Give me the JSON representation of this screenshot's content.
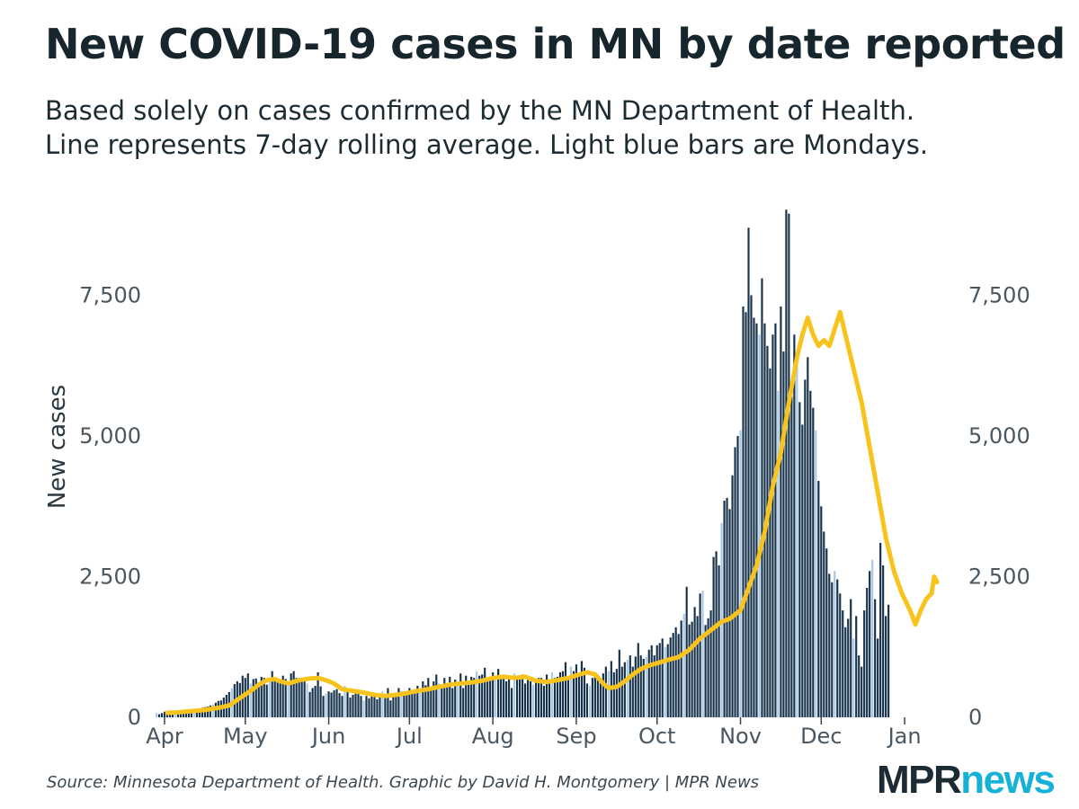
{
  "header": {
    "title": "New COVID-19 cases in MN by date reported",
    "subtitle_line1": "Based solely on cases confirmed by the MN Department of Health.",
    "subtitle_line2": "Line represents 7-day rolling average. Light blue bars are Mondays."
  },
  "footer": {
    "source": "Source: Minnesota Department of Health. Graphic by David H. Montgomery | MPR News",
    "logo_mpr": "MPR",
    "logo_news": "news"
  },
  "colors": {
    "bar": "#16314a",
    "monday_bar": "#a9c8e6",
    "line": "#f7c31c",
    "tick_text": "#4a5660"
  },
  "chart_data": {
    "type": "bar",
    "title": "New COVID-19 cases in MN by date reported",
    "ylabel": "New cases",
    "xlabel": "",
    "ylim": [
      0,
      9200
    ],
    "yticks": [
      0,
      2500,
      5000,
      7500
    ],
    "ytick_labels": [
      "0",
      "2,500",
      "5,000",
      "7,500"
    ],
    "x_start_day": 0,
    "x_end_day": 288,
    "xticks": [
      {
        "label": "Apr",
        "day": 0
      },
      {
        "label": "May",
        "day": 30
      },
      {
        "label": "Jun",
        "day": 61
      },
      {
        "label": "Jul",
        "day": 91
      },
      {
        "label": "Aug",
        "day": 122
      },
      {
        "label": "Sep",
        "day": 153
      },
      {
        "label": "Oct",
        "day": 183
      },
      {
        "label": "Nov",
        "day": 214
      },
      {
        "label": "Dec",
        "day": 244
      },
      {
        "label": "Jan",
        "day": 275
      }
    ],
    "series": [
      {
        "name": "Daily new cases",
        "kind": "bars",
        "first_day": -3,
        "first_weekday": 0,
        "monday_highlight": true,
        "values": [
          75,
          55,
          75,
          100,
          60,
          80,
          70,
          60,
          100,
          100,
          110,
          110,
          120,
          110,
          130,
          140,
          160,
          170,
          180,
          190,
          210,
          230,
          260,
          290,
          300,
          350,
          400,
          450,
          520,
          590,
          640,
          610,
          740,
          700,
          780,
          600,
          680,
          690,
          620,
          720,
          700,
          580,
          650,
          820,
          700,
          620,
          660,
          740,
          680,
          640,
          780,
          820,
          700,
          650,
          660,
          700,
          600,
          450,
          520,
          560,
          800,
          550,
          380,
          420,
          460,
          440,
          480,
          500,
          430,
          380,
          560,
          480,
          350,
          400,
          420,
          440,
          380,
          300,
          380,
          340,
          420,
          360,
          320,
          390,
          460,
          400,
          520,
          300,
          420,
          440,
          520,
          470,
          450,
          460,
          520,
          480,
          420,
          560,
          500,
          640,
          570,
          700,
          540,
          640,
          760,
          600,
          560,
          700,
          580,
          720,
          520,
          670,
          620,
          780,
          520,
          740,
          640,
          720,
          700,
          820,
          740,
          760,
          880,
          640,
          700,
          800,
          740,
          860,
          700,
          760,
          640,
          720,
          520,
          780,
          680,
          740,
          760,
          600,
          680,
          640,
          580,
          620,
          700,
          700,
          560,
          760,
          660,
          800,
          700,
          720,
          800,
          820,
          980,
          720,
          900,
          820,
          940,
          780,
          1000,
          880,
          600,
          560,
          700,
          800,
          740,
          640,
          780,
          900,
          820,
          1000,
          800,
          860,
          1200,
          900,
          980,
          1020,
          1100,
          900,
          1080,
          1320,
          1100,
          1040,
          1080,
          1200,
          1280,
          1100,
          1280,
          1320,
          1400,
          1250,
          1300,
          1420,
          1500,
          1600,
          1480,
          1720,
          1840,
          2320,
          1650,
          1700,
          1960,
          1800,
          2200,
          2250,
          1640,
          1760,
          1900,
          2850,
          2950,
          2700,
          3450,
          3850,
          3900,
          3700,
          4300,
          4800,
          5000,
          5100,
          7300,
          7200,
          8700,
          7500,
          7100,
          7000,
          6800,
          7800,
          7000,
          6600,
          6200,
          6800,
          7000,
          5800,
          7300,
          6500,
          9020,
          8950,
          5700,
          6800,
          6400,
          5600,
          5200,
          6000,
          6400,
          5800,
          5500,
          5100,
          4200,
          3750,
          3300,
          3000,
          2550,
          2400,
          2600,
          2450,
          2200,
          1900,
          1600,
          1750,
          2100,
          1400,
          1800,
          1100,
          900,
          1900,
          2300,
          2600,
          2800,
          2100,
          1400,
          3100,
          2700,
          1800,
          2000
        ]
      },
      {
        "name": "7-day rolling average",
        "kind": "line",
        "points": [
          [
            1,
            80
          ],
          [
            5,
            90
          ],
          [
            10,
            110
          ],
          [
            15,
            130
          ],
          [
            20,
            170
          ],
          [
            24,
            210
          ],
          [
            28,
            340
          ],
          [
            32,
            470
          ],
          [
            35,
            580
          ],
          [
            38,
            660
          ],
          [
            41,
            680
          ],
          [
            43,
            640
          ],
          [
            46,
            600
          ],
          [
            50,
            660
          ],
          [
            54,
            690
          ],
          [
            57,
            700
          ],
          [
            60,
            660
          ],
          [
            63,
            600
          ],
          [
            66,
            500
          ],
          [
            70,
            470
          ],
          [
            74,
            440
          ],
          [
            78,
            400
          ],
          [
            82,
            380
          ],
          [
            86,
            400
          ],
          [
            90,
            430
          ],
          [
            94,
            470
          ],
          [
            98,
            500
          ],
          [
            102,
            540
          ],
          [
            106,
            580
          ],
          [
            110,
            600
          ],
          [
            114,
            620
          ],
          [
            118,
            650
          ],
          [
            122,
            700
          ],
          [
            126,
            720
          ],
          [
            130,
            700
          ],
          [
            134,
            720
          ],
          [
            138,
            650
          ],
          [
            142,
            630
          ],
          [
            146,
            660
          ],
          [
            150,
            700
          ],
          [
            154,
            760
          ],
          [
            157,
            800
          ],
          [
            160,
            760
          ],
          [
            163,
            600
          ],
          [
            165,
            520
          ],
          [
            168,
            540
          ],
          [
            171,
            640
          ],
          [
            174,
            760
          ],
          [
            177,
            860
          ],
          [
            180,
            920
          ],
          [
            183,
            960
          ],
          [
            187,
            1020
          ],
          [
            191,
            1070
          ],
          [
            195,
            1200
          ],
          [
            199,
            1400
          ],
          [
            203,
            1550
          ],
          [
            207,
            1700
          ],
          [
            210,
            1750
          ],
          [
            214,
            1900
          ],
          [
            217,
            2300
          ],
          [
            220,
            2700
          ],
          [
            223,
            3300
          ],
          [
            226,
            4100
          ],
          [
            229,
            4700
          ],
          [
            232,
            5600
          ],
          [
            235,
            6400
          ],
          [
            237,
            6800
          ],
          [
            239,
            7100
          ],
          [
            241,
            6800
          ],
          [
            243,
            6600
          ],
          [
            245,
            6700
          ],
          [
            247,
            6600
          ],
          [
            249,
            6900
          ],
          [
            251,
            7200
          ],
          [
            253,
            6800
          ],
          [
            255,
            6400
          ],
          [
            257,
            6000
          ],
          [
            259,
            5600
          ],
          [
            262,
            4800
          ],
          [
            265,
            4000
          ],
          [
            268,
            3200
          ],
          [
            271,
            2600
          ],
          [
            274,
            2200
          ],
          [
            277,
            1900
          ],
          [
            279,
            1650
          ],
          [
            281,
            1900
          ],
          [
            283,
            2100
          ],
          [
            285,
            2200
          ],
          [
            286,
            2500
          ],
          [
            287,
            2400
          ]
        ]
      }
    ],
    "legend": "none"
  }
}
